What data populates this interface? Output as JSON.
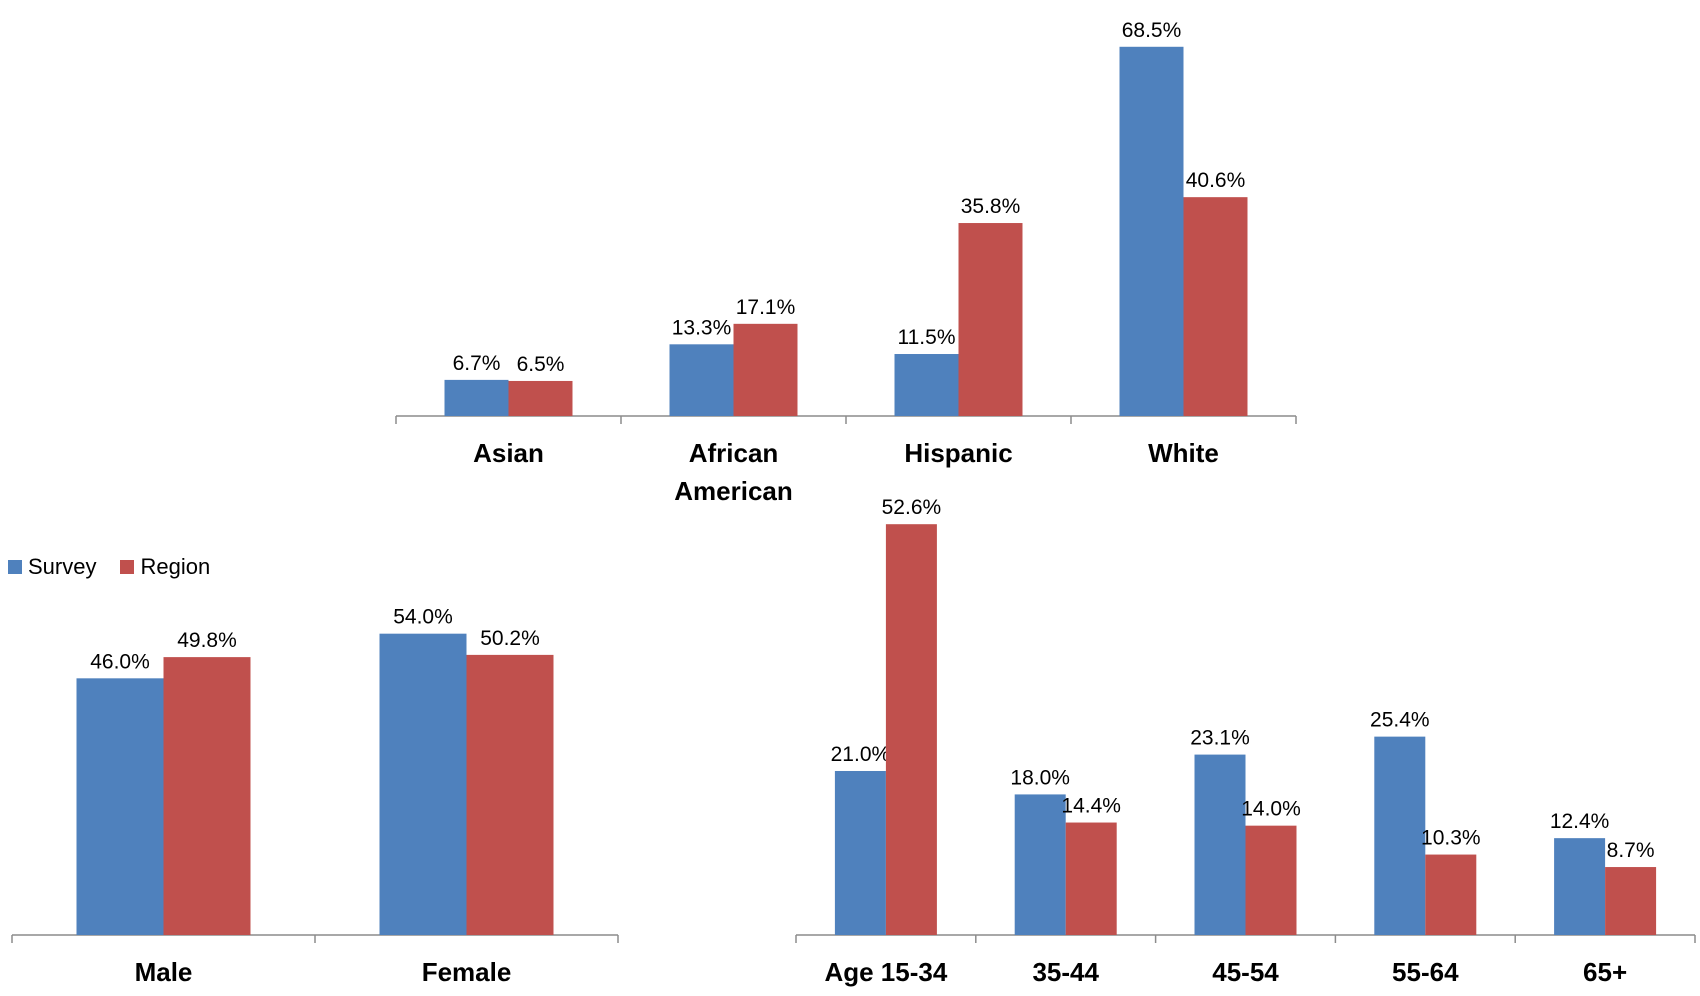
{
  "colors": {
    "survey": "#4F81BD",
    "region": "#C0504D",
    "axis": "#8C8C8C"
  },
  "legend": {
    "placement": "top-left of gender chart",
    "items": [
      {
        "label": "Survey",
        "color": "#4F81BD"
      },
      {
        "label": "Region",
        "color": "#C0504D"
      }
    ]
  },
  "chart_data": [
    {
      "type": "bar",
      "categories": [
        "Asian",
        "African American",
        "Hispanic",
        "White"
      ],
      "series": [
        {
          "name": "Survey",
          "values": [
            6.7,
            13.3,
            11.5,
            68.5
          ]
        },
        {
          "name": "Region",
          "values": [
            6.5,
            17.1,
            35.8,
            40.6
          ]
        }
      ],
      "data_labels": [
        [
          "6.7%",
          "13.3%",
          "11.5%",
          "68.5%"
        ],
        [
          "6.5%",
          "17.1%",
          "35.8%",
          "40.6%"
        ]
      ]
    },
    {
      "type": "bar",
      "categories": [
        "Male",
        "Female"
      ],
      "series": [
        {
          "name": "Survey",
          "values": [
            46.0,
            54.0
          ]
        },
        {
          "name": "Region",
          "values": [
            49.8,
            50.2
          ]
        }
      ],
      "data_labels": [
        [
          "46.0%",
          "54.0%"
        ],
        [
          "49.8%",
          "50.2%"
        ]
      ]
    },
    {
      "type": "bar",
      "categories": [
        "Age 15-34",
        "35-44",
        "45-54",
        "55-64",
        "65+"
      ],
      "series": [
        {
          "name": "Survey",
          "values": [
            21.0,
            18.0,
            23.1,
            25.4,
            12.4
          ]
        },
        {
          "name": "Region",
          "values": [
            52.6,
            14.4,
            14.0,
            10.3,
            8.7
          ]
        }
      ],
      "data_labels": [
        [
          "21.0%",
          "18.0%",
          "23.1%",
          "25.4%",
          "12.4%"
        ],
        [
          "52.6%",
          "14.4%",
          "14.0%",
          "10.3%",
          "8.7%"
        ]
      ]
    }
  ]
}
